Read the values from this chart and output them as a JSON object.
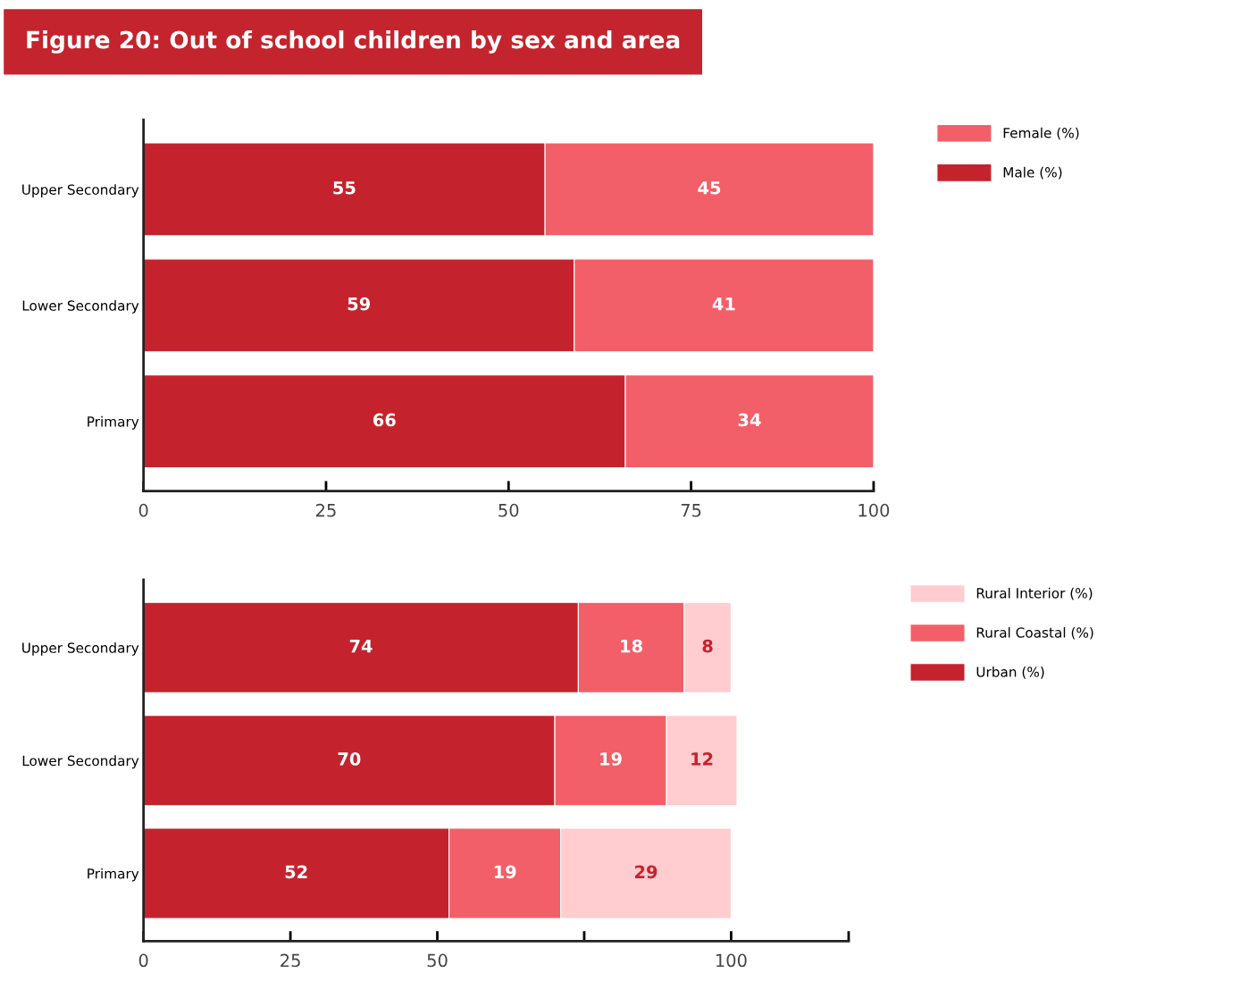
{
  "chart_data": [
    {
      "type": "bar",
      "title": "Figure 20: Out of school children by sex and area",
      "orientation": "horizontal",
      "stacked": true,
      "data_labels": true,
      "legend": "top right",
      "grid": false,
      "categories": [
        "Upper Secondary",
        "Lower Secondary",
        "Primary"
      ],
      "xlim": [
        0,
        100
      ],
      "xticks": [
        0,
        25,
        50,
        75,
        100
      ],
      "series": [
        {
          "name": "Male (%)",
          "color": "#c4232d",
          "values": [
            55,
            59,
            66
          ]
        },
        {
          "name": "Female (%)",
          "color": "#f25f68",
          "values": [
            45,
            41,
            34
          ]
        }
      ]
    },
    {
      "type": "bar",
      "orientation": "horizontal",
      "stacked": true,
      "data_labels": true,
      "legend": "top right",
      "grid": false,
      "categories": [
        "Upper Secondary",
        "Lower Secondary",
        "Primary"
      ],
      "xlim": [
        0,
        120
      ],
      "xticks": [
        0,
        25,
        50,
        {
          "value": 75,
          "label": null
        },
        100,
        {
          "value": 120,
          "label": null
        }
      ],
      "series": [
        {
          "name": "Urban (%)",
          "color": "#c4232d",
          "values": [
            74,
            70,
            52
          ]
        },
        {
          "name": "Rural Coastal (%)",
          "color": "#f25f68",
          "values": [
            18,
            19,
            19
          ]
        },
        {
          "name": "Rural Interior (%)",
          "color": "#ffcccf",
          "values": [
            8,
            12,
            29
          ]
        }
      ]
    }
  ]
}
